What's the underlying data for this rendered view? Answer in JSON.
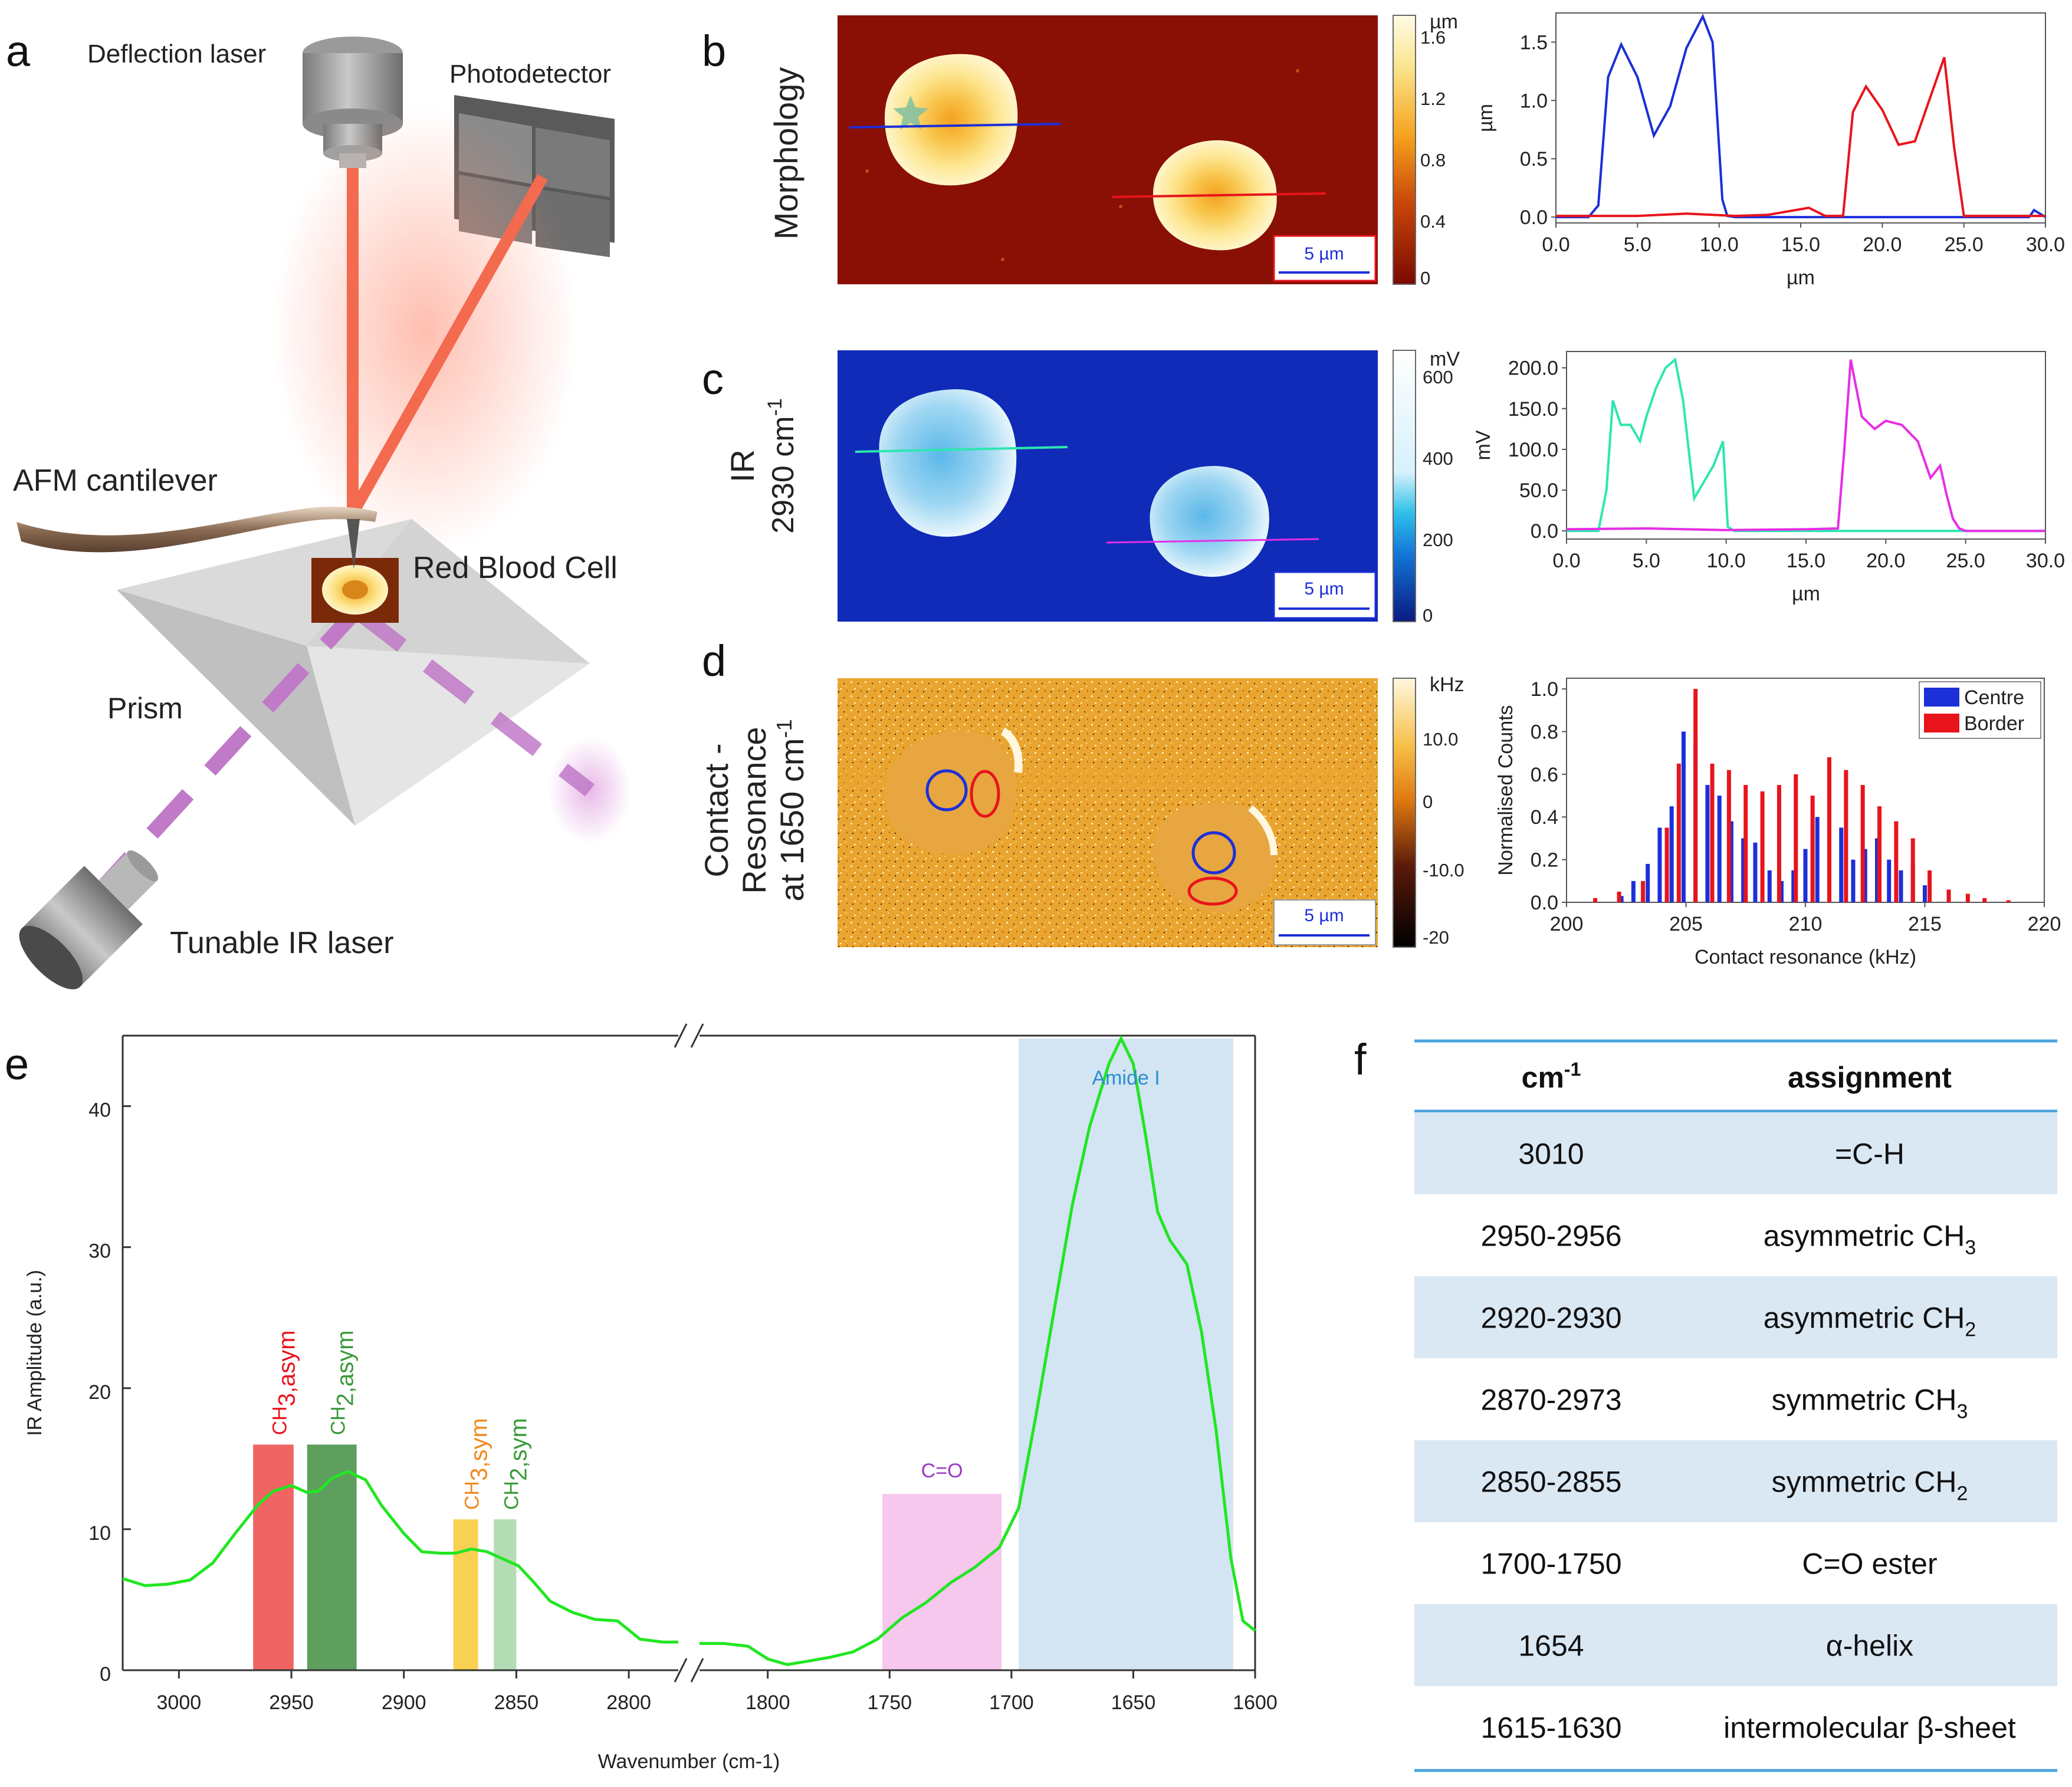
{
  "figure": {
    "panel_labels": {
      "a": "a",
      "b": "b",
      "c": "c",
      "d": "d",
      "e": "e",
      "f": "f"
    },
    "colors": {
      "blue": "#1c2fd9",
      "red": "#e8141c",
      "cyan": "#2ee6b0",
      "magenta": "#e62ee6",
      "spectrum": "#22e622",
      "table_rule": "#4ba4dd",
      "table_band": "#dae8f4"
    },
    "panel_a": {
      "deflection_laser": "Deflection laser",
      "photodetector": "Photodetector",
      "afm_cantilever": "AFM cantilever",
      "red_blood_cell": "Red Blood Cell",
      "prism": "Prism",
      "tunable_ir_laser": "Tunable IR laser"
    },
    "panel_b": {
      "row_label": "Morphology",
      "colorbar_unit": "µm",
      "colorbar_ticks": [
        "1.6",
        "1.2",
        "0.8",
        "0.4",
        "0"
      ],
      "scale_bar": "5 µm"
    },
    "panel_c": {
      "row_label_1": "IR",
      "row_label_2": "2930 cm",
      "row_label_sup": "-1",
      "colorbar_unit": "mV",
      "colorbar_ticks": [
        "600",
        "400",
        "200",
        "0"
      ],
      "scale_bar": "5 µm"
    },
    "panel_d": {
      "row_label_1": "Contact -",
      "row_label_2": "Resonance",
      "row_label_3": "at 1650 cm",
      "row_label_sup": "-1",
      "colorbar_unit": "kHz",
      "colorbar_ticks": [
        "10.0",
        "0",
        "-10.0",
        "-20"
      ],
      "scale_bar": "5 µm"
    },
    "panel_f": {
      "header_cm": "cm",
      "header_cm_sup": "-1",
      "header_assignment": "assignment",
      "rows": [
        {
          "cm": "3010",
          "assignment": "=C-H",
          "sub": ""
        },
        {
          "cm": "2950-2956",
          "assignment": "asymmetric CH",
          "sub": "3"
        },
        {
          "cm": "2920-2930",
          "assignment": "asymmetric CH",
          "sub": "2"
        },
        {
          "cm": "2870-2973",
          "assignment": "symmetric CH",
          "sub": "3"
        },
        {
          "cm": "2850-2855",
          "assignment": "symmetric CH",
          "sub": "2"
        },
        {
          "cm": "1700-1750",
          "assignment": "C=O ester",
          "sub": ""
        },
        {
          "cm": "1654",
          "assignment": "α-helix",
          "sub": ""
        },
        {
          "cm": "1615-1630",
          "assignment": "intermolecular β-sheet",
          "sub": ""
        }
      ]
    }
  },
  "chart_data": [
    {
      "id": "b_profile",
      "type": "line",
      "xlabel": "µm",
      "ylabel": "µm",
      "xlim": [
        0,
        30
      ],
      "ylim": [
        -0.05,
        1.75
      ],
      "xticks": [
        0,
        5,
        10,
        15,
        20,
        25,
        30
      ],
      "xtick_labels": [
        "0.0",
        "5.0",
        "10.0",
        "15.0",
        "20.0",
        "25.0",
        "30.0"
      ],
      "yticks": [
        0,
        0.5,
        1.0,
        1.5
      ],
      "ytick_labels": [
        "0.0",
        "0.5",
        "1.0",
        "1.5"
      ],
      "series": [
        {
          "name": "blue profile",
          "color": "#1c2fd9",
          "x": [
            0,
            2,
            2.6,
            3.2,
            4,
            5,
            6,
            7,
            8,
            9,
            9.6,
            10.2,
            10.5,
            11,
            20,
            29,
            29.3,
            30
          ],
          "y": [
            0,
            0,
            0.1,
            1.2,
            1.48,
            1.2,
            0.7,
            0.95,
            1.45,
            1.72,
            1.5,
            0.15,
            0.01,
            0,
            0,
            0,
            0.06,
            0
          ]
        },
        {
          "name": "red profile",
          "color": "#e8141c",
          "x": [
            0,
            5,
            8,
            11,
            13,
            15.5,
            16.5,
            17.6,
            18.2,
            19,
            20,
            21,
            22,
            23,
            23.8,
            24.4,
            25,
            28,
            30
          ],
          "y": [
            0.01,
            0.01,
            0.03,
            0.01,
            0.02,
            0.08,
            0.01,
            0.01,
            0.9,
            1.12,
            0.92,
            0.62,
            0.65,
            1.05,
            1.37,
            0.6,
            0.01,
            0.01,
            0.01
          ]
        }
      ]
    },
    {
      "id": "c_profile",
      "type": "line",
      "xlabel": "µm",
      "ylabel": "mV",
      "xlim": [
        0,
        30
      ],
      "ylim": [
        -10,
        220
      ],
      "xticks": [
        0,
        5,
        10,
        15,
        20,
        25,
        30
      ],
      "xtick_labels": [
        "0.0",
        "5.0",
        "10.0",
        "15.0",
        "20.0",
        "25.0",
        "30.0"
      ],
      "yticks": [
        0,
        50,
        100,
        150,
        200
      ],
      "ytick_labels": [
        "0.0",
        "50.0",
        "100.0",
        "150.0",
        "200.0"
      ],
      "series": [
        {
          "name": "cyan profile",
          "color": "#2ee6b0",
          "x": [
            0,
            2,
            2.5,
            2.9,
            3.4,
            4,
            4.6,
            5,
            5.6,
            6.2,
            6.8,
            7.3,
            8,
            8.6,
            9.2,
            9.8,
            10.1,
            10.5,
            20,
            30
          ],
          "y": [
            0,
            0,
            50,
            160,
            130,
            130,
            110,
            140,
            175,
            200,
            210,
            160,
            40,
            60,
            80,
            110,
            5,
            0,
            0,
            0
          ]
        },
        {
          "name": "magenta profile",
          "color": "#e62ee6",
          "x": [
            0,
            5,
            10,
            15,
            17,
            17.4,
            17.8,
            18.5,
            19.3,
            20,
            21,
            22,
            22.8,
            23.4,
            23.8,
            24.2,
            24.6,
            25,
            30
          ],
          "y": [
            2,
            3,
            1,
            2,
            3,
            100,
            210,
            140,
            125,
            135,
            130,
            110,
            65,
            80,
            45,
            15,
            3,
            0,
            0
          ]
        }
      ]
    },
    {
      "id": "d_histogram",
      "type": "bar",
      "xlabel": "Contact resonance (kHz)",
      "ylabel": "Normalised Counts",
      "xlim": [
        200,
        220
      ],
      "ylim": [
        0,
        1.05
      ],
      "xticks": [
        200,
        205,
        210,
        215,
        220
      ],
      "xtick_labels": [
        "200",
        "205",
        "210",
        "215",
        "220"
      ],
      "yticks": [
        0,
        0.2,
        0.4,
        0.6,
        0.8,
        1.0
      ],
      "ytick_labels": [
        "0.0",
        "0.2",
        "0.4",
        "0.6",
        "0.8",
        "1.0"
      ],
      "legend": [
        "Centre",
        "Border"
      ],
      "series": [
        {
          "name": "Centre",
          "color": "#1c2fd9",
          "x": [
            202.3,
            202.8,
            203.4,
            203.9,
            204.4,
            204.9,
            205.4,
            205.9,
            206.4,
            206.9,
            207.4,
            207.9,
            208.5,
            209,
            209.5,
            210,
            210.5,
            211,
            211.5,
            212,
            212.5,
            213,
            213.5,
            214,
            214.5,
            215
          ],
          "y": [
            0.03,
            0.1,
            0.18,
            0.35,
            0.45,
            0.8,
            0.75,
            0.55,
            0.5,
            0.38,
            0.3,
            0.28,
            0.15,
            0.1,
            0.15,
            0.25,
            0.4,
            0.45,
            0.35,
            0.2,
            0.25,
            0.3,
            0.2,
            0.15,
            0.18,
            0.08
          ]
        },
        {
          "name": "Border",
          "color": "#e8141c",
          "x": [
            201.2,
            202.2,
            203.2,
            204.2,
            204.7,
            205.4,
            206.1,
            206.8,
            207.5,
            208.2,
            208.9,
            209.6,
            210.3,
            211,
            211.7,
            212.4,
            213.1,
            213.8,
            214.5,
            215.2,
            216,
            216.8,
            217.5,
            218.5
          ],
          "y": [
            0.02,
            0.05,
            0.1,
            0.35,
            0.65,
            1.0,
            0.65,
            0.62,
            0.55,
            0.52,
            0.55,
            0.6,
            0.5,
            0.68,
            0.62,
            0.55,
            0.45,
            0.38,
            0.3,
            0.15,
            0.06,
            0.04,
            0.02,
            0.01
          ]
        }
      ]
    },
    {
      "id": "e_spectrum",
      "type": "line",
      "xlabel": "Wavenumber (cm-1)",
      "ylabel": "IR Amplitude (a.u.)",
      "ylim": [
        0,
        45
      ],
      "yticks": [
        0,
        10,
        20,
        30,
        40
      ],
      "ytick_labels": [
        "0",
        "10",
        "20",
        "30",
        "40"
      ],
      "left_xlim": [
        3025,
        2778
      ],
      "left_xticks": [
        3000,
        2950,
        2900,
        2850,
        2800
      ],
      "left_xtick_labels": [
        "3000",
        "2950",
        "2900",
        "2850",
        "2800"
      ],
      "right_xlim": [
        1828,
        1600
      ],
      "right_xticks": [
        1800,
        1750,
        1700,
        1650,
        1600
      ],
      "right_xtick_labels": [
        "1800",
        "1750",
        "1700",
        "1650",
        "1600"
      ],
      "bands": [
        {
          "label": "CH",
          "sub": "3,asym",
          "from": 2967,
          "to": 2949,
          "top": 16,
          "color": "#f06464",
          "text_color": "#e8141c",
          "segment": "left"
        },
        {
          "label": "CH",
          "sub": "2,asym",
          "from": 2943,
          "to": 2921,
          "top": 16,
          "color": "#5e9e5e",
          "text_color": "#3a9a3a",
          "segment": "left"
        },
        {
          "label": "CH",
          "sub": "3,sym",
          "from": 2878,
          "to": 2867,
          "top": 10.7,
          "color": "#f7d152",
          "text_color": "#f08a1e",
          "segment": "left"
        },
        {
          "label": "CH",
          "sub": "2,sym",
          "from": 2860,
          "to": 2850,
          "top": 10.7,
          "color": "#b4dcb4",
          "text_color": "#3a9a3a",
          "segment": "left"
        },
        {
          "label": "C=O",
          "sub": "",
          "from": 1753,
          "to": 1704,
          "top": 12.5,
          "color": "#f6c8ee",
          "text_color": "#9b39c6",
          "segment": "right"
        },
        {
          "label": "Amide I",
          "sub": "",
          "from": 1697,
          "to": 1609,
          "top": 44.8,
          "color": "#d3e4f3",
          "text_color": "#2a8fd0",
          "segment": "right"
        }
      ],
      "series": [
        {
          "name": "spectrum left",
          "color": "#22e622",
          "x": [
            3025,
            3015,
            3005,
            2995,
            2985,
            2975,
            2965,
            2958,
            2950,
            2943,
            2938,
            2932,
            2925,
            2917,
            2910,
            2900,
            2892,
            2884,
            2877,
            2870,
            2863,
            2856,
            2849,
            2842,
            2835,
            2825,
            2815,
            2805,
            2795,
            2785,
            2778
          ],
          "y": [
            6.5,
            6.0,
            6.1,
            6.4,
            7.6,
            9.7,
            11.7,
            12.7,
            13.1,
            12.6,
            12.7,
            13.6,
            14.1,
            13.5,
            11.7,
            9.7,
            8.4,
            8.3,
            8.3,
            8.6,
            8.4,
            7.9,
            7.4,
            6.2,
            4.9,
            4.1,
            3.6,
            3.5,
            2.2,
            2.0,
            2.0
          ]
        },
        {
          "name": "spectrum right",
          "color": "#22e622",
          "x": [
            1828,
            1818,
            1808,
            1800,
            1792,
            1785,
            1775,
            1765,
            1755,
            1745,
            1735,
            1725,
            1715,
            1705,
            1697,
            1690,
            1682,
            1675,
            1668,
            1660,
            1655,
            1650,
            1645,
            1640,
            1635,
            1628,
            1622,
            1616,
            1610,
            1605,
            1600
          ],
          "y": [
            1.9,
            1.9,
            1.7,
            0.8,
            0.4,
            0.6,
            0.9,
            1.3,
            2.2,
            3.7,
            4.8,
            6.2,
            7.3,
            8.7,
            11.5,
            18.0,
            26.0,
            33.0,
            38.5,
            43.0,
            44.8,
            43.0,
            38.0,
            32.5,
            30.5,
            28.8,
            24.0,
            17.0,
            8.0,
            3.5,
            2.8
          ]
        }
      ]
    }
  ]
}
